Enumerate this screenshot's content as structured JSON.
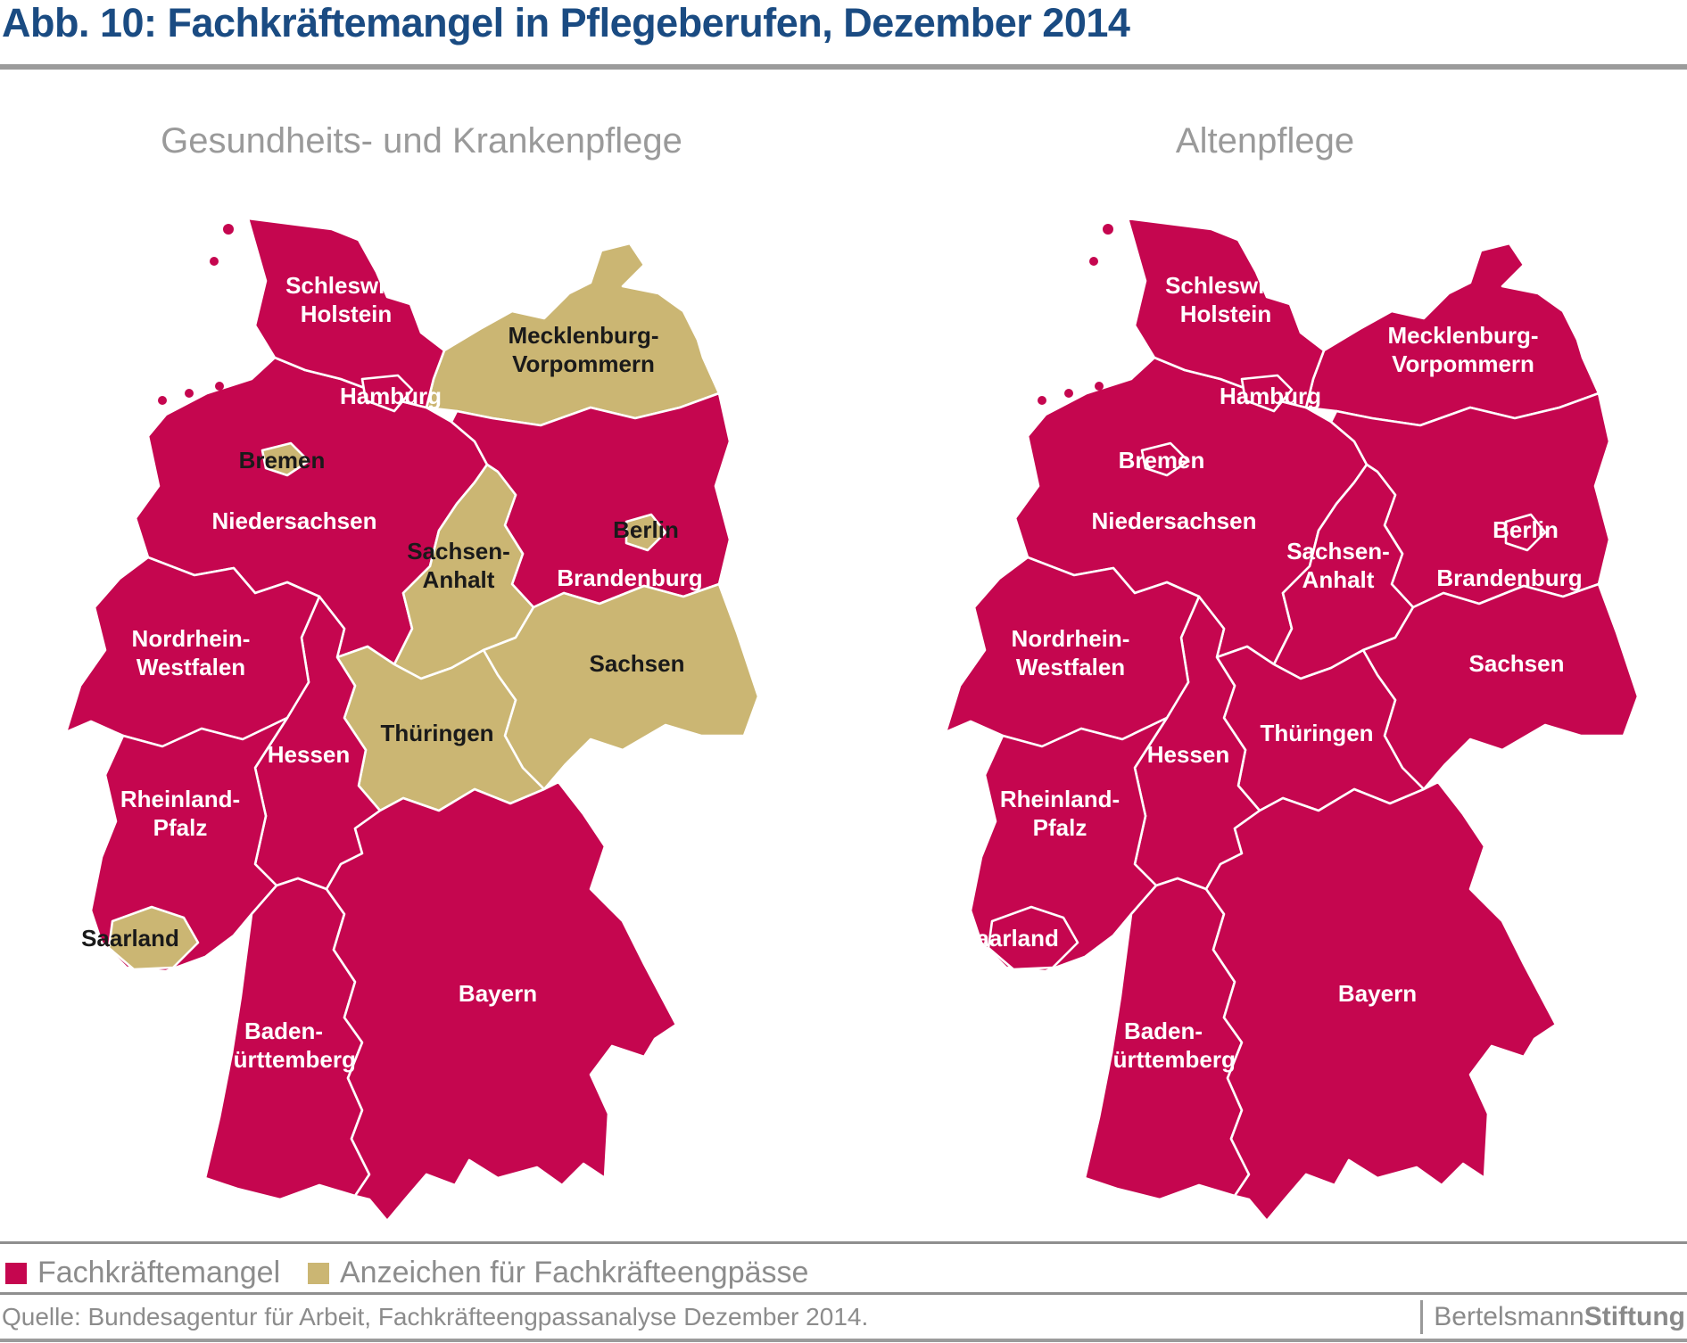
{
  "title": "Abb. 10: Fachkräftemangel in Pflegeberufen, Dezember 2014",
  "maps": [
    {
      "id": "gesundheits-und-krankenpflege",
      "subtitle": "Gesundheits- und Krankenpflege",
      "states": {
        "sh": "shortage",
        "hh": "shortage",
        "mv": "signs",
        "ni": "shortage",
        "hb": "signs",
        "bb": "shortage",
        "be": "signs",
        "st": "signs",
        "sn": "signs",
        "th": "signs",
        "he": "shortage",
        "nrw": "shortage",
        "rp": "shortage",
        "sl": "signs",
        "bw": "shortage",
        "by": "shortage"
      }
    },
    {
      "id": "altenpflege",
      "subtitle": "Altenpflege",
      "states": {
        "sh": "shortage",
        "hh": "shortage",
        "mv": "shortage",
        "ni": "shortage",
        "hb": "shortage",
        "bb": "shortage",
        "be": "shortage",
        "st": "shortage",
        "sn": "shortage",
        "th": "shortage",
        "he": "shortage",
        "nrw": "shortage",
        "rp": "shortage",
        "sl": "shortage",
        "bw": "shortage",
        "by": "shortage"
      }
    }
  ],
  "states": [
    {
      "id": "sh",
      "name": "Schleswig-Holstein",
      "label": [
        "Schleswig-",
        "Holstein"
      ]
    },
    {
      "id": "hh",
      "name": "Hamburg",
      "label": [
        "Hamburg"
      ]
    },
    {
      "id": "mv",
      "name": "Mecklenburg-Vorpommern",
      "label": [
        "Mecklenburg-",
        "Vorpommern"
      ]
    },
    {
      "id": "hb",
      "name": "Bremen",
      "label": [
        "Bremen"
      ]
    },
    {
      "id": "ni",
      "name": "Niedersachsen",
      "label": [
        "Niedersachsen"
      ]
    },
    {
      "id": "be",
      "name": "Berlin",
      "label": [
        "Berlin"
      ]
    },
    {
      "id": "bb",
      "name": "Brandenburg",
      "label": [
        "Brandenburg"
      ]
    },
    {
      "id": "st",
      "name": "Sachsen-Anhalt",
      "label": [
        "Sachsen-",
        "Anhalt"
      ]
    },
    {
      "id": "sn",
      "name": "Sachsen",
      "label": [
        "Sachsen"
      ]
    },
    {
      "id": "th",
      "name": "Thüringen",
      "label": [
        "Thüringen"
      ]
    },
    {
      "id": "he",
      "name": "Hessen",
      "label": [
        "Hessen"
      ]
    },
    {
      "id": "nrw",
      "name": "Nordrhein-Westfalen",
      "label": [
        "Nordrhein-",
        "Westfalen"
      ]
    },
    {
      "id": "rp",
      "name": "Rheinland-Pfalz",
      "label": [
        "Rheinland-",
        "Pfalz"
      ]
    },
    {
      "id": "sl",
      "name": "Saarland",
      "label": [
        "Saarland"
      ]
    },
    {
      "id": "bw",
      "name": "Baden-Württemberg",
      "label": [
        "Baden-",
        "Württemberg"
      ]
    },
    {
      "id": "by",
      "name": "Bayern",
      "label": [
        "Bayern"
      ]
    }
  ],
  "legend": [
    {
      "key": "shortage",
      "label": "Fachkräftemangel",
      "color": "#C5064F"
    },
    {
      "key": "signs",
      "label": "Anzeichen für Fachkräfteengpässe",
      "color": "#CBB673"
    }
  ],
  "colors": {
    "shortage": "#C5064F",
    "signs": "#CBB673",
    "label_on_shortage": "#FFFFFF",
    "label_on_signs": "#1A1A1A",
    "title": "#1A4B82",
    "subtitle": "#9A9A9A",
    "rule": "#9B9B9B",
    "text_gray": "#8C8C8C",
    "border": "#FFFFFF"
  },
  "source": "Quelle: Bundesagentur für Arbeit, Fachkräfteengpassanalyse Dezember 2014.",
  "branding": {
    "name_regular": "Bertelsmann",
    "name_bold": "Stiftung"
  }
}
